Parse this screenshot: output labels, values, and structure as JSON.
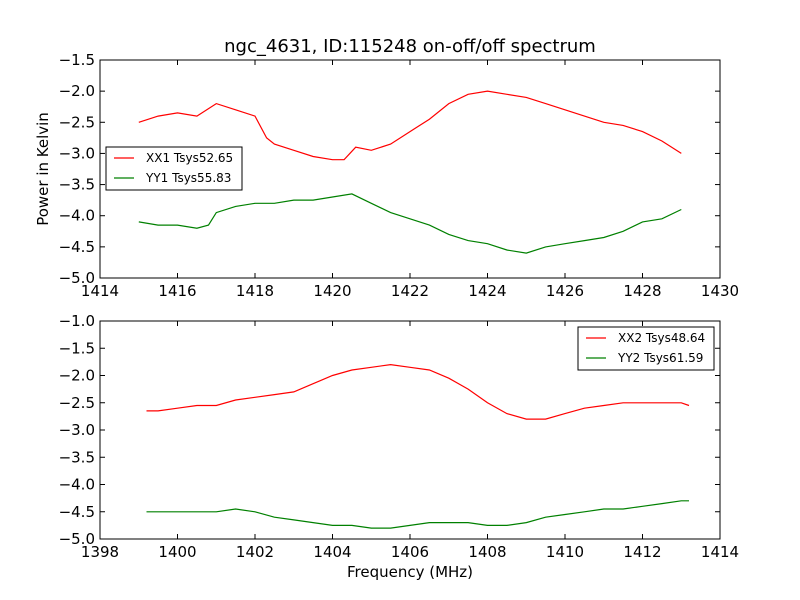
{
  "chart_data": [
    {
      "type": "line",
      "title": "ngc_4631, ID:115248 on-off/off spectrum",
      "xlabel": "",
      "ylabel": "Power in Kelvin",
      "xlim": [
        1414,
        1430
      ],
      "ylim": [
        -5.0,
        -1.5
      ],
      "xticks": [
        1414,
        1416,
        1418,
        1420,
        1422,
        1424,
        1426,
        1428,
        1430
      ],
      "yticks": [
        -1.5,
        -2.0,
        -2.5,
        -3.0,
        -3.5,
        -4.0,
        -4.5,
        -5.0
      ],
      "xtick_labels": [
        "1414",
        "1416",
        "1418",
        "1420",
        "1422",
        "1424",
        "1426",
        "1428",
        "1430"
      ],
      "ytick_labels": [
        "−1.5",
        "−2.0",
        "−2.5",
        "−3.0",
        "−3.5",
        "−4.0",
        "−4.5",
        "−5.0"
      ],
      "legend_position": "center-left",
      "grid": false,
      "series": [
        {
          "name": "XX1 Tsys52.65",
          "color": "#ff0000",
          "x": [
            1415.0,
            1415.5,
            1416.0,
            1416.5,
            1417.0,
            1417.5,
            1418.0,
            1418.3,
            1418.5,
            1419.0,
            1419.5,
            1420.0,
            1420.3,
            1420.6,
            1421.0,
            1421.5,
            1422.0,
            1422.5,
            1423.0,
            1423.5,
            1424.0,
            1424.5,
            1425.0,
            1425.5,
            1426.0,
            1426.5,
            1427.0,
            1427.5,
            1428.0,
            1428.5,
            1429.0
          ],
          "values": [
            -2.5,
            -2.4,
            -2.35,
            -2.4,
            -2.2,
            -2.3,
            -2.4,
            -2.75,
            -2.85,
            -2.95,
            -3.05,
            -3.1,
            -3.1,
            -2.9,
            -2.95,
            -2.85,
            -2.65,
            -2.45,
            -2.2,
            -2.05,
            -2.0,
            -2.05,
            -2.1,
            -2.2,
            -2.3,
            -2.4,
            -2.5,
            -2.55,
            -2.65,
            -2.8,
            -3.0
          ]
        },
        {
          "name": "YY1 Tsys55.83",
          "color": "#008000",
          "x": [
            1415.0,
            1415.5,
            1416.0,
            1416.5,
            1416.8,
            1417.0,
            1417.5,
            1418.0,
            1418.5,
            1419.0,
            1419.5,
            1420.0,
            1420.5,
            1421.0,
            1421.5,
            1422.0,
            1422.5,
            1423.0,
            1423.5,
            1424.0,
            1424.5,
            1425.0,
            1425.5,
            1426.0,
            1426.5,
            1427.0,
            1427.5,
            1428.0,
            1428.5,
            1429.0
          ],
          "values": [
            -4.1,
            -4.15,
            -4.15,
            -4.2,
            -4.15,
            -3.95,
            -3.85,
            -3.8,
            -3.8,
            -3.75,
            -3.75,
            -3.7,
            -3.65,
            -3.8,
            -3.95,
            -4.05,
            -4.15,
            -4.3,
            -4.4,
            -4.45,
            -4.55,
            -4.6,
            -4.5,
            -4.45,
            -4.4,
            -4.35,
            -4.25,
            -4.1,
            -4.05,
            -3.9
          ]
        }
      ]
    },
    {
      "type": "line",
      "title": "",
      "xlabel": "Frequency (MHz)",
      "ylabel": "",
      "xlim": [
        1398,
        1414
      ],
      "ylim": [
        -5.0,
        -1.0
      ],
      "xticks": [
        1398,
        1400,
        1402,
        1404,
        1406,
        1408,
        1410,
        1412,
        1414
      ],
      "yticks": [
        -1.0,
        -1.5,
        -2.0,
        -2.5,
        -3.0,
        -3.5,
        -4.0,
        -4.5,
        -5.0
      ],
      "xtick_labels": [
        "1398",
        "1400",
        "1402",
        "1404",
        "1406",
        "1408",
        "1410",
        "1412",
        "1414"
      ],
      "ytick_labels": [
        "−1.0",
        "−1.5",
        "−2.0",
        "−2.5",
        "−3.0",
        "−3.5",
        "−4.0",
        "−4.5",
        "−5.0"
      ],
      "legend_position": "top-right",
      "grid": false,
      "series": [
        {
          "name": "XX2 Tsys48.64",
          "color": "#ff0000",
          "x": [
            1399.2,
            1399.5,
            1400.0,
            1400.5,
            1401.0,
            1401.5,
            1402.0,
            1402.5,
            1403.0,
            1403.5,
            1404.0,
            1404.5,
            1405.0,
            1405.5,
            1406.0,
            1406.5,
            1407.0,
            1407.5,
            1408.0,
            1408.5,
            1409.0,
            1409.5,
            1410.0,
            1410.5,
            1411.0,
            1411.5,
            1412.0,
            1412.5,
            1413.0,
            1413.2
          ],
          "values": [
            -2.65,
            -2.65,
            -2.6,
            -2.55,
            -2.55,
            -2.45,
            -2.4,
            -2.35,
            -2.3,
            -2.15,
            -2.0,
            -1.9,
            -1.85,
            -1.8,
            -1.85,
            -1.9,
            -2.05,
            -2.25,
            -2.5,
            -2.7,
            -2.8,
            -2.8,
            -2.7,
            -2.6,
            -2.55,
            -2.5,
            -2.5,
            -2.5,
            -2.5,
            -2.55
          ]
        },
        {
          "name": "YY2 Tsys61.59",
          "color": "#008000",
          "x": [
            1399.2,
            1399.5,
            1400.0,
            1400.5,
            1401.0,
            1401.5,
            1402.0,
            1402.5,
            1403.0,
            1403.5,
            1404.0,
            1404.5,
            1405.0,
            1405.5,
            1406.0,
            1406.5,
            1407.0,
            1407.5,
            1408.0,
            1408.5,
            1409.0,
            1409.5,
            1410.0,
            1410.5,
            1411.0,
            1411.5,
            1412.0,
            1412.5,
            1413.0,
            1413.2
          ],
          "values": [
            -4.5,
            -4.5,
            -4.5,
            -4.5,
            -4.5,
            -4.45,
            -4.5,
            -4.6,
            -4.65,
            -4.7,
            -4.75,
            -4.75,
            -4.8,
            -4.8,
            -4.75,
            -4.7,
            -4.7,
            -4.7,
            -4.75,
            -4.75,
            -4.7,
            -4.6,
            -4.55,
            -4.5,
            -4.45,
            -4.45,
            -4.4,
            -4.35,
            -4.3,
            -4.3
          ]
        }
      ]
    }
  ]
}
